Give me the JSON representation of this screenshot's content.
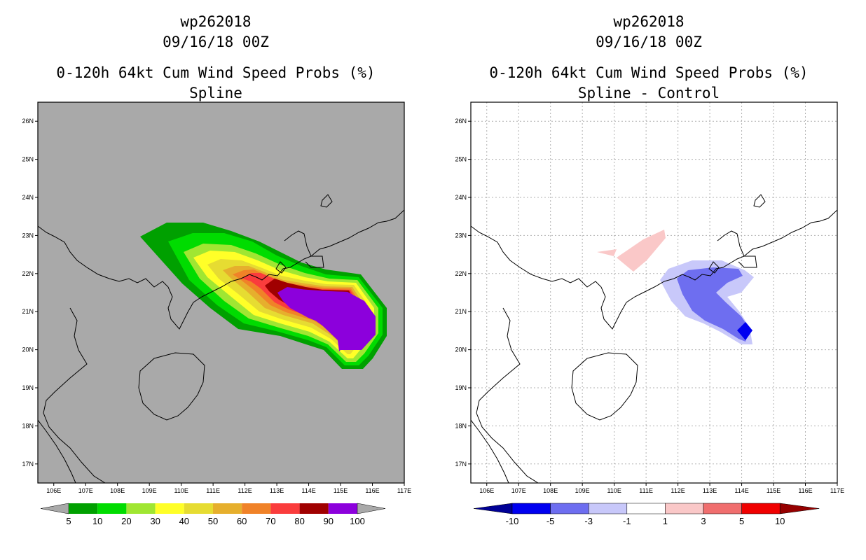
{
  "left_panel": {
    "storm_id": "wp262018",
    "datetime": "09/16/18 00Z",
    "product": "0-120h 64kt Cum Wind Speed Probs (%)",
    "subtitle": "Spline",
    "background_color": "#a9a9a9",
    "colorbar": {
      "labels": [
        "5",
        "10",
        "20",
        "30",
        "40",
        "50",
        "60",
        "70",
        "80",
        "90",
        "100"
      ],
      "colors": [
        "#00a000",
        "#00dc00",
        "#a0e632",
        "#ffff28",
        "#e6dc32",
        "#e6af2d",
        "#f08228",
        "#fa3c3c",
        "#a00000",
        "#8c00dc"
      ],
      "extend_color": "#a9a9a9"
    }
  },
  "right_panel": {
    "storm_id": "wp262018",
    "datetime": "09/16/18 00Z",
    "product": "0-120h 64kt Cum Wind Speed Probs (%)",
    "subtitle": "Spline - Control",
    "background_color": "#ffffff",
    "colorbar": {
      "labels": [
        "-10",
        "-5",
        "-3",
        "-1",
        "1",
        "3",
        "5",
        "10"
      ],
      "colors": [
        "#000096",
        "#0000f0",
        "#6e6ef0",
        "#c8c8fa",
        "#ffffff",
        "#fac8c8",
        "#f06e6e",
        "#f00000",
        "#960000"
      ]
    }
  },
  "axes": {
    "lon_labels": [
      "106E",
      "107E",
      "108E",
      "109E",
      "110E",
      "111E",
      "112E",
      "113E",
      "114E",
      "115E",
      "116E",
      "117E"
    ],
    "lat_labels": [
      "17N",
      "18N",
      "19N",
      "20N",
      "21N",
      "22N",
      "23N",
      "24N",
      "25N",
      "26N"
    ]
  }
}
